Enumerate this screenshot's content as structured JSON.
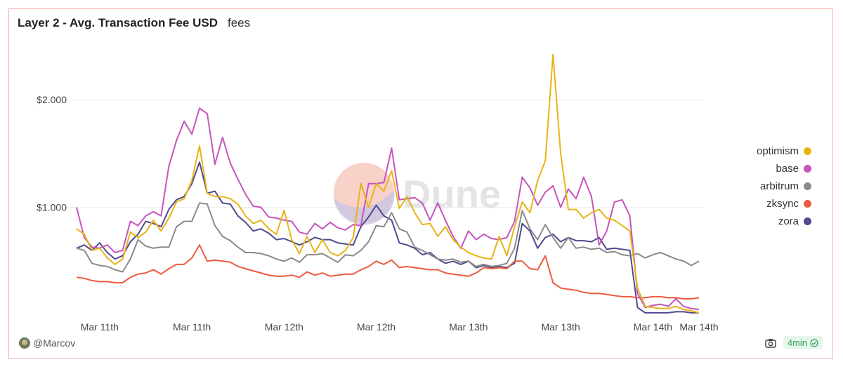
{
  "header": {
    "title": "Layer 2 - Avg. Transaction Fee USD",
    "subtitle": "fees"
  },
  "watermark": "Dune",
  "footer": {
    "author": "@Marcov",
    "time_badge": "4min",
    "icons": [
      "camera-icon",
      "check-circle-icon"
    ]
  },
  "chart_data": {
    "type": "line",
    "title": "Layer 2 - Avg. Transaction Fee USD",
    "xlabel": "",
    "ylabel": "",
    "ylim": [
      0,
      2.45
    ],
    "yticks": [
      1.0,
      2.0
    ],
    "ytick_labels": [
      "$1.000",
      "$2.000"
    ],
    "x_tick_labels": [
      "Mar 11th",
      "Mar 11th",
      "Mar 12th",
      "Mar 12th",
      "Mar 13th",
      "Mar 13th",
      "Mar 14th",
      "Mar 14th"
    ],
    "x_tick_positions": [
      3,
      15,
      27,
      39,
      51,
      63,
      75,
      81
    ],
    "x_count": 82,
    "grid": true,
    "legend_position": "right",
    "series": [
      {
        "name": "optimism",
        "color": "#e7b416",
        "values": [
          0.8,
          0.75,
          0.6,
          0.62,
          0.53,
          0.47,
          0.52,
          0.77,
          0.72,
          0.77,
          0.88,
          0.78,
          0.9,
          1.05,
          1.08,
          1.25,
          1.57,
          1.13,
          1.1,
          1.1,
          1.08,
          1.03,
          0.92,
          0.85,
          0.88,
          0.8,
          0.75,
          0.97,
          0.7,
          0.57,
          0.73,
          0.58,
          0.7,
          0.58,
          0.55,
          0.6,
          0.72,
          1.22,
          1.0,
          1.22,
          1.15,
          1.34,
          0.99,
          1.1,
          0.95,
          0.84,
          0.85,
          0.73,
          0.82,
          0.7,
          0.63,
          0.58,
          0.55,
          0.53,
          0.52,
          0.73,
          0.55,
          0.82,
          1.05,
          0.95,
          1.25,
          1.43,
          2.42,
          1.5,
          0.98,
          0.98,
          0.9,
          0.95,
          0.98,
          0.9,
          0.88,
          0.83,
          0.78,
          0.25,
          0.08,
          0.07,
          0.06,
          0.06,
          0.08,
          0.05,
          0.04,
          0.02
        ]
      },
      {
        "name": "base",
        "color": "#c654bc",
        "values": [
          1.0,
          0.72,
          0.63,
          0.62,
          0.65,
          0.58,
          0.6,
          0.87,
          0.83,
          0.92,
          0.96,
          0.92,
          1.38,
          1.62,
          1.8,
          1.68,
          1.92,
          1.87,
          1.4,
          1.65,
          1.41,
          1.26,
          1.12,
          1.01,
          1.0,
          0.91,
          0.9,
          0.88,
          0.87,
          0.77,
          0.75,
          0.85,
          0.8,
          0.86,
          0.81,
          0.79,
          0.84,
          0.83,
          1.22,
          1.22,
          1.23,
          1.55,
          1.07,
          1.08,
          1.09,
          1.04,
          0.88,
          1.04,
          0.88,
          0.73,
          0.62,
          0.78,
          0.7,
          0.75,
          0.71,
          0.7,
          0.72,
          0.87,
          1.28,
          1.18,
          1.02,
          1.14,
          1.2,
          1.0,
          1.17,
          1.08,
          1.28,
          1.1,
          0.65,
          0.78,
          1.05,
          1.07,
          0.92,
          0.2,
          0.07,
          0.09,
          0.1,
          0.08,
          0.15,
          0.08,
          0.06,
          0.05
        ]
      },
      {
        "name": "arbitrum",
        "color": "#8a8a8a",
        "values": [
          0.62,
          0.6,
          0.48,
          0.46,
          0.45,
          0.42,
          0.4,
          0.52,
          0.7,
          0.64,
          0.62,
          0.63,
          0.63,
          0.82,
          0.87,
          0.87,
          1.04,
          1.03,
          0.83,
          0.73,
          0.69,
          0.63,
          0.58,
          0.58,
          0.57,
          0.55,
          0.52,
          0.5,
          0.53,
          0.49,
          0.56,
          0.56,
          0.57,
          0.53,
          0.49,
          0.56,
          0.55,
          0.6,
          0.68,
          0.83,
          0.82,
          0.95,
          0.8,
          0.77,
          0.63,
          0.6,
          0.56,
          0.52,
          0.51,
          0.52,
          0.49,
          0.5,
          0.45,
          0.47,
          0.45,
          0.46,
          0.48,
          0.62,
          0.97,
          0.8,
          0.7,
          0.84,
          0.72,
          0.62,
          0.72,
          0.62,
          0.63,
          0.61,
          0.62,
          0.58,
          0.59,
          0.56,
          0.55,
          0.57,
          0.53,
          0.56,
          0.58,
          0.55,
          0.52,
          0.5,
          0.46,
          0.5
        ]
      },
      {
        "name": "zksync",
        "color": "#ee5b3c",
        "values": [
          0.35,
          0.34,
          0.32,
          0.31,
          0.31,
          0.3,
          0.3,
          0.35,
          0.38,
          0.39,
          0.42,
          0.38,
          0.43,
          0.47,
          0.47,
          0.53,
          0.65,
          0.5,
          0.51,
          0.5,
          0.49,
          0.45,
          0.43,
          0.41,
          0.39,
          0.37,
          0.36,
          0.36,
          0.37,
          0.35,
          0.4,
          0.37,
          0.39,
          0.36,
          0.37,
          0.38,
          0.38,
          0.42,
          0.45,
          0.5,
          0.47,
          0.51,
          0.44,
          0.45,
          0.44,
          0.43,
          0.42,
          0.42,
          0.39,
          0.38,
          0.37,
          0.36,
          0.39,
          0.44,
          0.43,
          0.44,
          0.43,
          0.5,
          0.5,
          0.43,
          0.42,
          0.55,
          0.3,
          0.25,
          0.24,
          0.23,
          0.21,
          0.2,
          0.2,
          0.19,
          0.18,
          0.17,
          0.17,
          0.16,
          0.16,
          0.17,
          0.17,
          0.16,
          0.16,
          0.15,
          0.15,
          0.16
        ]
      },
      {
        "name": "zora",
        "color": "#4f4a8f",
        "values": [
          0.62,
          0.65,
          0.6,
          0.67,
          0.58,
          0.52,
          0.55,
          0.68,
          0.75,
          0.87,
          0.85,
          0.82,
          0.98,
          1.07,
          1.1,
          1.22,
          1.42,
          1.13,
          1.15,
          1.04,
          1.03,
          0.92,
          0.86,
          0.78,
          0.8,
          0.76,
          0.7,
          0.71,
          0.68,
          0.65,
          0.68,
          0.72,
          0.7,
          0.7,
          0.67,
          0.66,
          0.65,
          0.82,
          0.91,
          1.02,
          0.92,
          0.88,
          0.67,
          0.65,
          0.62,
          0.56,
          0.58,
          0.52,
          0.48,
          0.5,
          0.47,
          0.5,
          0.44,
          0.46,
          0.44,
          0.45,
          0.44,
          0.48,
          0.85,
          0.78,
          0.62,
          0.72,
          0.75,
          0.68,
          0.72,
          0.69,
          0.69,
          0.68,
          0.72,
          0.61,
          0.62,
          0.61,
          0.6,
          0.07,
          0.02,
          0.02,
          0.02,
          0.02,
          0.03,
          0.03,
          0.02,
          0.02
        ]
      }
    ]
  }
}
